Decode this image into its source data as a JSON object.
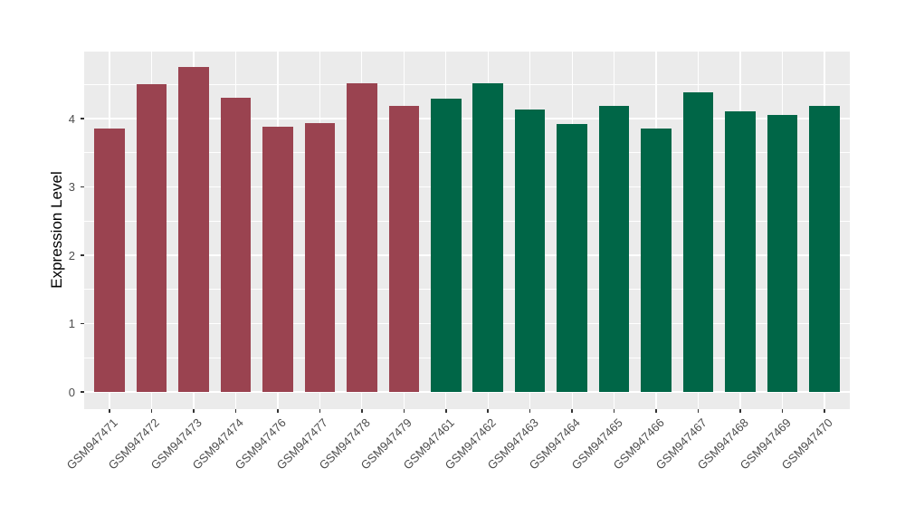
{
  "chart_data": {
    "type": "bar",
    "title": "",
    "xlabel": "",
    "ylabel": "Expression Level",
    "ylim": [
      0,
      5
    ],
    "yticks": [
      0,
      1,
      2,
      3,
      4
    ],
    "yminor": [
      0.5,
      1.5,
      2.5,
      3.5,
      4.5
    ],
    "y_display_range": [
      -0.25,
      4.98
    ],
    "grid": "on",
    "legend_position": "none",
    "categories": [
      "GSM947471",
      "GSM947472",
      "GSM947473",
      "GSM947474",
      "GSM947476",
      "GSM947477",
      "GSM947478",
      "GSM947479",
      "GSM947461",
      "GSM947462",
      "GSM947463",
      "GSM947464",
      "GSM947465",
      "GSM947466",
      "GSM947467",
      "GSM947468",
      "GSM947469",
      "GSM947470"
    ],
    "values": [
      3.86,
      4.5,
      4.75,
      4.31,
      3.88,
      3.94,
      4.51,
      4.18,
      4.29,
      4.52,
      4.13,
      3.92,
      4.18,
      3.86,
      4.38,
      4.1,
      4.05,
      4.18
    ],
    "bar_groups": [
      "group1",
      "group1",
      "group1",
      "group1",
      "group1",
      "group1",
      "group1",
      "group1",
      "group2",
      "group2",
      "group2",
      "group2",
      "group2",
      "group2",
      "group2",
      "group2",
      "group2",
      "group2"
    ],
    "group_colors": {
      "group1": "#9A4350",
      "group2": "#006647"
    }
  },
  "colors": {
    "panel_background": "#EBEBEB",
    "gridline": "#FFFFFF",
    "axis_text": "#4D4D4D",
    "axis_title": "#000000",
    "tick_mark": "#333333",
    "figure_background": "#FFFFFF"
  }
}
